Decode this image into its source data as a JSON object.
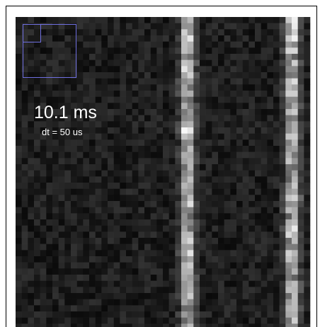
{
  "overlay": {
    "time": "10.1 ms",
    "step": "dt = 50 us"
  }
}
